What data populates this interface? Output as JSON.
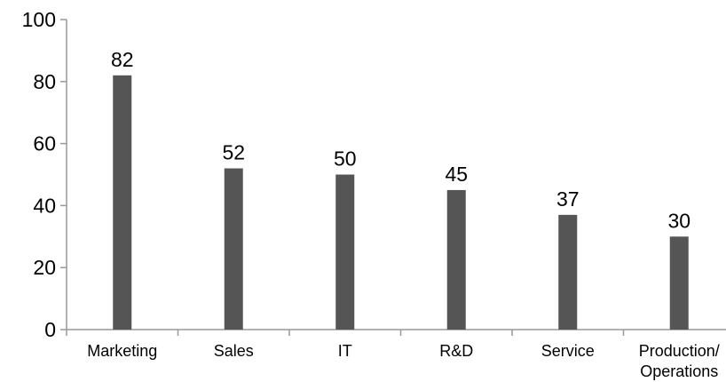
{
  "chart_data": {
    "type": "bar",
    "categories": [
      "Marketing",
      "Sales",
      "IT",
      "R&D",
      "Service",
      "Production/ Operations"
    ],
    "category_lines": [
      [
        "Marketing"
      ],
      [
        "Sales"
      ],
      [
        "IT"
      ],
      [
        "R&D"
      ],
      [
        "Service"
      ],
      [
        "Production/",
        "Operations"
      ]
    ],
    "values": [
      82,
      52,
      50,
      45,
      37,
      30
    ],
    "data_labels": [
      "82",
      "52",
      "50",
      "45",
      "37",
      "30"
    ],
    "yticks": [
      0,
      20,
      40,
      60,
      80,
      100
    ],
    "ytick_labels": [
      "0",
      "20",
      "40",
      "60",
      "80",
      "100"
    ],
    "ylim": [
      0,
      100
    ],
    "title": "",
    "xlabel": "",
    "ylabel": "",
    "grid": false,
    "legend": "none",
    "bar_color": "#555555",
    "axis_color": "#999999"
  }
}
